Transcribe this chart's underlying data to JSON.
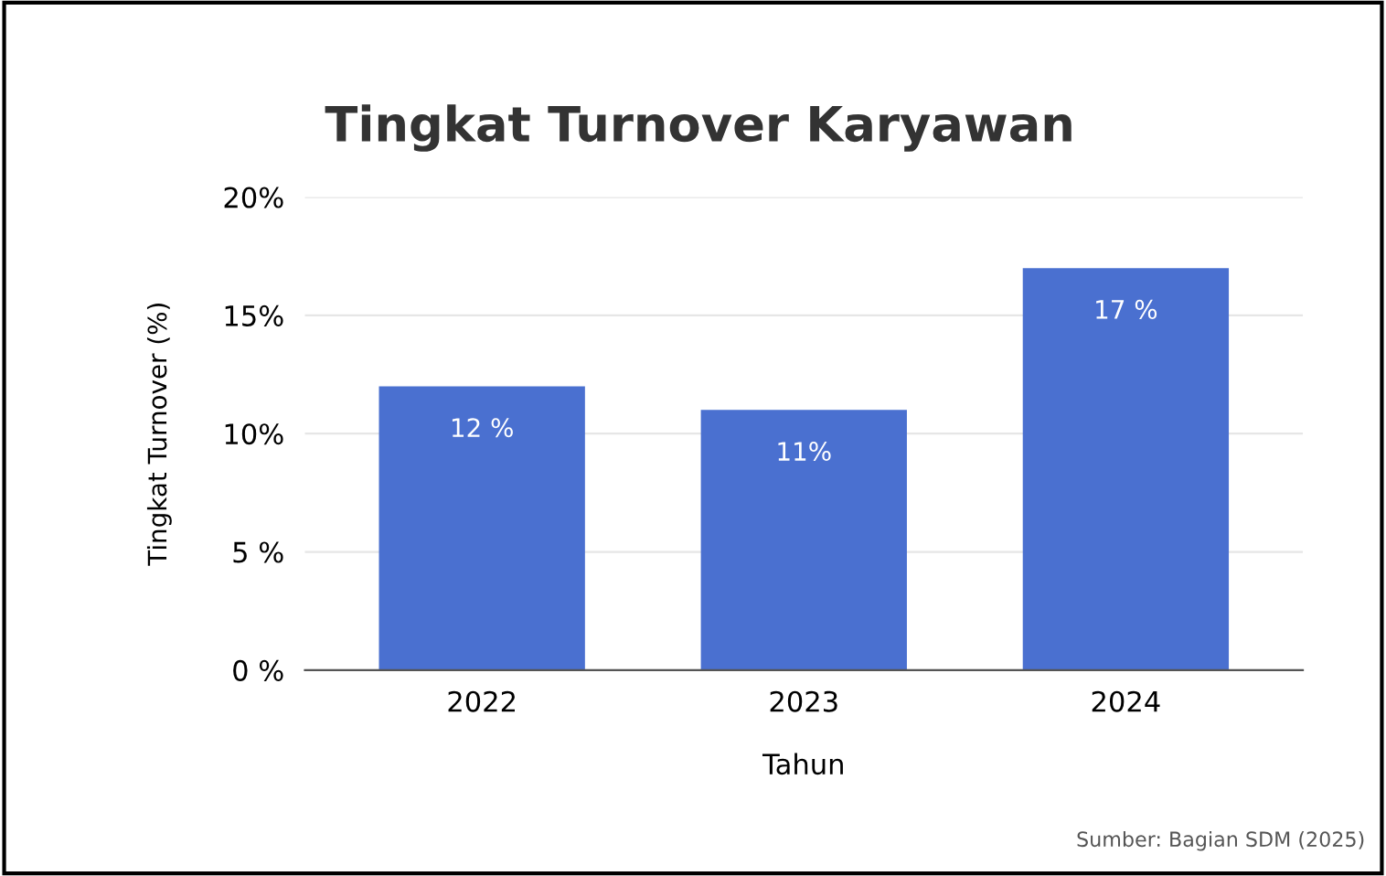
{
  "chart_data": {
    "type": "bar",
    "title": "Tingkat Turnover Karyawan",
    "xlabel": "Tahun",
    "ylabel": "Tingkat Turnover (%)",
    "categories": [
      "2022",
      "2023",
      "2024"
    ],
    "values": [
      12,
      11,
      17
    ],
    "value_labels": [
      "12 %",
      "11%",
      "17 %"
    ],
    "color": "#4a70d0",
    "ylim": [
      0,
      20
    ],
    "yticks": [
      {
        "value": 0,
        "label": "0 %"
      },
      {
        "value": 5,
        "label": "5 %"
      },
      {
        "value": 10,
        "label": "10%"
      },
      {
        "value": 15,
        "label": "15%"
      },
      {
        "value": 20,
        "label": "20%"
      }
    ],
    "grid": "y",
    "annotations": [
      "Sumber: Bagian SDM (2025)"
    ]
  }
}
